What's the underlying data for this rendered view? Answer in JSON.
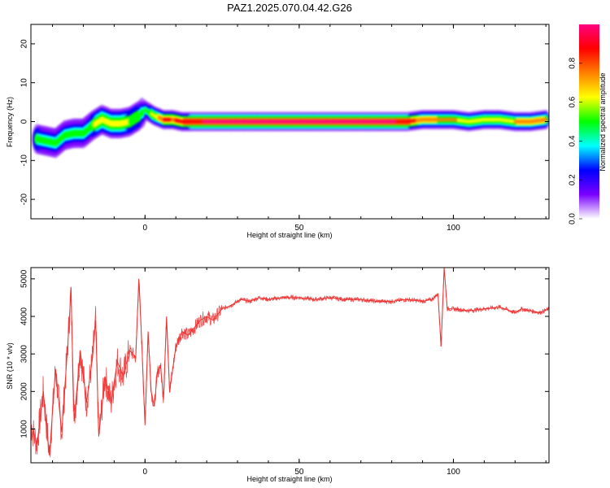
{
  "figure_title": "PAZ1.2025.070.04.42.G26",
  "chart_data": [
    {
      "type": "heatmap",
      "name": "spectrogram",
      "xlabel": "Height of straight line (km)",
      "ylabel": "Frequency (Hz)",
      "xlim": [
        -37,
        131
      ],
      "ylim": [
        -25,
        25
      ],
      "xticks": [
        0,
        50,
        100
      ],
      "yticks": [
        20,
        10,
        0,
        -10,
        -20
      ],
      "grid": false,
      "ridge": {
        "description": "dominant frequency ridge of normalized spectral amplitude",
        "height_km": [
          -35,
          -32,
          -29,
          -26,
          -23,
          -20,
          -17,
          -14,
          -11,
          -8,
          -5,
          -2,
          0,
          3,
          6,
          9,
          12,
          15,
          20,
          30,
          40,
          50,
          60,
          70,
          80,
          85,
          90,
          95,
          100,
          105,
          110,
          115,
          120,
          125,
          130
        ],
        "frequency_hz": [
          -4.5,
          -5,
          -5.5,
          -3.5,
          -3,
          -3,
          -1,
          0.5,
          -0.5,
          -0.5,
          0,
          1.5,
          3,
          1.5,
          0.5,
          0.5,
          0,
          0,
          0,
          0,
          0,
          0,
          0,
          0,
          0,
          0,
          0.5,
          0.5,
          0.5,
          0,
          0.5,
          0.5,
          0,
          0,
          0.5
        ],
        "peak_amplitude": [
          0.55,
          0.5,
          0.45,
          0.45,
          0.5,
          0.45,
          0.55,
          0.6,
          0.65,
          0.6,
          0.55,
          0.55,
          0.5,
          0.6,
          0.85,
          0.8,
          0.85,
          0.9,
          0.95,
          0.95,
          0.95,
          0.95,
          0.95,
          0.95,
          0.95,
          0.9,
          0.75,
          0.7,
          0.7,
          0.65,
          0.6,
          0.6,
          0.7,
          0.75,
          0.7
        ]
      }
    },
    {
      "type": "colorbar",
      "label": "Normalized spectral amplitude",
      "range": [
        0,
        1
      ],
      "ticks": [
        "0.0",
        "0.2",
        "0.4",
        "0.6",
        "0.8"
      ],
      "colors": [
        "#ffffff",
        "#7a00ff",
        "#0000ff",
        "#00ffff",
        "#00ff00",
        "#ffff00",
        "#ff8000",
        "#ff0000",
        "#ff0080"
      ]
    },
    {
      "type": "line",
      "name": "snr",
      "xlabel": "Height of straight line (km)",
      "ylabel": "SNR (10 * v/v)",
      "xlim": [
        -37,
        131
      ],
      "ylim": [
        100,
        5300
      ],
      "xticks": [
        0,
        50,
        100
      ],
      "yticks": [
        1000,
        2000,
        3000,
        4000,
        5000
      ],
      "color": "#ee3333",
      "grid": false,
      "x": [
        -37,
        -35,
        -33,
        -31,
        -29,
        -27,
        -25,
        -24,
        -23,
        -21,
        -19,
        -17,
        -16,
        -15,
        -13,
        -11,
        -9,
        -7,
        -5,
        -3,
        -2,
        -1,
        0,
        1,
        2,
        3,
        4,
        5,
        6,
        7,
        8,
        10,
        12,
        14,
        16,
        18,
        20,
        22,
        25,
        28,
        31,
        34,
        37,
        40,
        45,
        50,
        55,
        60,
        65,
        70,
        75,
        80,
        85,
        90,
        93,
        95,
        96,
        97,
        98,
        100,
        105,
        110,
        115,
        120,
        122,
        125,
        128,
        131
      ],
      "y": [
        1100,
        600,
        2000,
        300,
        2600,
        900,
        3300,
        4700,
        1200,
        3100,
        1700,
        2900,
        3900,
        800,
        2400,
        1700,
        2800,
        2400,
        3100,
        2900,
        5000,
        3200,
        1100,
        3600,
        2000,
        1600,
        2500,
        2700,
        1800,
        4000,
        2000,
        3200,
        3600,
        3500,
        3700,
        3900,
        4000,
        3900,
        4200,
        4300,
        4450,
        4400,
        4500,
        4450,
        4500,
        4500,
        4450,
        4500,
        4450,
        4450,
        4400,
        4400,
        4450,
        4400,
        4450,
        4600,
        3200,
        5300,
        4200,
        4200,
        4150,
        4200,
        4250,
        4100,
        4200,
        4150,
        4100,
        4200
      ]
    }
  ]
}
